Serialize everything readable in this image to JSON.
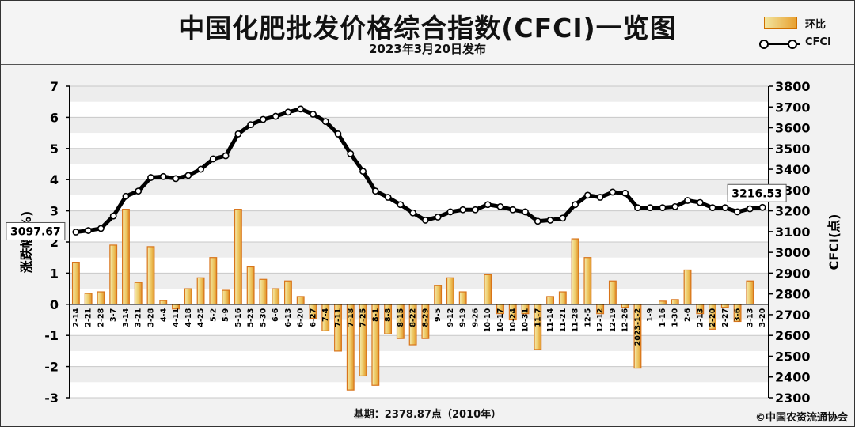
{
  "header": {
    "title": "中国化肥批发价格综合指数(CFCI)一览图",
    "subtitle": "2023年3月20日发布"
  },
  "legend": {
    "bar_label": "环比",
    "line_label": "CFCI"
  },
  "footer": {
    "base": "基期：2378.87点（2010年）",
    "copyright": "©中国农资流通协会"
  },
  "chart_data": {
    "type": "bar+line",
    "categories": [
      "2-14",
      "2-21",
      "2-28",
      "3-7",
      "3-14",
      "3-21",
      "3-28",
      "4-4",
      "4-11",
      "4-18",
      "4-25",
      "5-2",
      "5-9",
      "5-16",
      "5-23",
      "5-30",
      "6-6",
      "6-13",
      "6-20",
      "6-27",
      "7-4",
      "7-11",
      "7-18",
      "7-25",
      "8-1",
      "8-8",
      "8-15",
      "8-22",
      "8-29",
      "9-5",
      "9-12",
      "9-19",
      "9-26",
      "10-10",
      "10-17",
      "10-24",
      "10-31",
      "11-7",
      "11-14",
      "11-21",
      "11-28",
      "12-5",
      "12-12",
      "12-19",
      "12-26",
      "2023-1-2",
      "1-9",
      "1-16",
      "1-30",
      "2-6",
      "2-13",
      "2-20",
      "2-27",
      "3-6",
      "3-13",
      "3-20"
    ],
    "series": [
      {
        "name": "环比",
        "axis": "left",
        "kind": "bar",
        "values": [
          1.35,
          0.35,
          0.4,
          1.9,
          3.05,
          0.7,
          1.85,
          0.12,
          -0.15,
          0.5,
          0.85,
          1.5,
          0.45,
          3.05,
          1.2,
          0.8,
          0.5,
          0.75,
          0.25,
          -0.45,
          -0.85,
          -1.5,
          -2.75,
          -2.3,
          -2.6,
          -0.95,
          -1.1,
          -1.3,
          -1.1,
          0.6,
          0.85,
          0.4,
          0.0,
          0.95,
          -0.3,
          -0.5,
          -0.3,
          -1.45,
          0.25,
          0.4,
          2.1,
          1.5,
          -0.3,
          0.75,
          -0.1,
          -2.05,
          0.0,
          0.1,
          0.15,
          1.1,
          -0.3,
          -0.8,
          -0.1,
          -0.55,
          0.75,
          0.0
        ]
      },
      {
        "name": "CFCI",
        "axis": "right",
        "kind": "line",
        "values": [
          3097.67,
          3105,
          3115,
          3175,
          3270,
          3295,
          3360,
          3365,
          3355,
          3370,
          3400,
          3450,
          3465,
          3570,
          3615,
          3640,
          3655,
          3675,
          3690,
          3665,
          3630,
          3570,
          3475,
          3390,
          3295,
          3265,
          3230,
          3190,
          3155,
          3170,
          3195,
          3205,
          3205,
          3230,
          3220,
          3205,
          3195,
          3150,
          3155,
          3165,
          3230,
          3275,
          3265,
          3290,
          3285,
          3215,
          3215,
          3215,
          3220,
          3250,
          3240,
          3215,
          3215,
          3195,
          3210,
          3216.53
        ]
      }
    ],
    "y_left": {
      "label": "涨跌幅(%)",
      "min": -3,
      "max": 7,
      "ticks": [
        -3,
        -2,
        -1,
        0,
        1,
        2,
        3,
        4,
        5,
        6,
        7
      ]
    },
    "y_right": {
      "label": "CFCI(点)",
      "min": 2300,
      "max": 3800,
      "ticks": [
        2300,
        2400,
        2500,
        2600,
        2700,
        2800,
        2900,
        3000,
        3100,
        3200,
        3300,
        3400,
        3500,
        3600,
        3700,
        3800
      ]
    },
    "annotations": [
      {
        "text": "3097.67",
        "point": "first"
      },
      {
        "text": "3216.53",
        "point": "last"
      }
    ],
    "grid": true,
    "legend_position": "top-right"
  }
}
